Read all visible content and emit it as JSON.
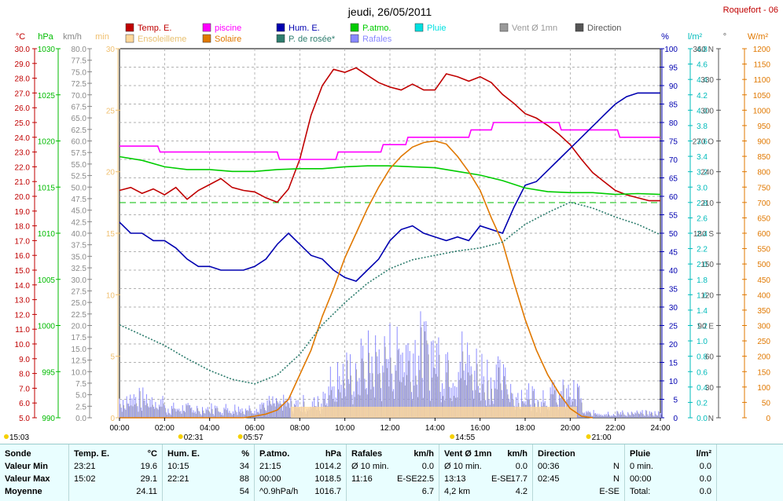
{
  "title": "jeudi, 26/05/2011",
  "station": "Roquefort - 06",
  "legend": [
    {
      "label": "Temp. E.",
      "color": "#c00000"
    },
    {
      "label": "piscine",
      "color": "#ff00ff"
    },
    {
      "label": "Hum. E.",
      "color": "#0000b0"
    },
    {
      "label": "P.atmo.",
      "color": "#00cc00"
    },
    {
      "label": "Pluie",
      "color": "#00e0e0"
    },
    {
      "label": "Vent Ø 1mn",
      "color": "#999999"
    },
    {
      "label": "Direction",
      "color": "#555555"
    },
    {
      "label": "Ensoleilleme",
      "color": "#ffd89a"
    },
    {
      "label": "Solaire",
      "color": "#e07800"
    },
    {
      "label": "P. de rosée*",
      "color": "#2e7d6e"
    },
    {
      "label": "Rafales",
      "color": "#8888ff"
    }
  ],
  "axis_units": {
    "temp": "°C",
    "press": "hPa",
    "wind": "km/h",
    "min": "min",
    "hum": "%",
    "rain": "l/m²",
    "dir": "°",
    "solar": "W/m²"
  },
  "chart_data": {
    "type": "line",
    "x_ticks": [
      "00:00",
      "02:00",
      "04:00",
      "06:00",
      "08:00",
      "10:00",
      "12:00",
      "14:00",
      "16:00",
      "18:00",
      "20:00",
      "22:00",
      "24:00"
    ],
    "axes": {
      "temp": {
        "min": 5.0,
        "max": 30.0,
        "step": 1.0,
        "color": "#c00000"
      },
      "press": {
        "min": 990,
        "max": 1030,
        "step": 5,
        "color": "#00bb00"
      },
      "wind": {
        "min": 0.0,
        "max": 80.0,
        "step": 2.5,
        "color": "#888888"
      },
      "min": {
        "min": 0,
        "max": 30,
        "step": 5,
        "color": "#f0c070"
      },
      "hum": {
        "min": 0,
        "max": 100,
        "step": 5,
        "color": "#0000b0"
      },
      "rain": {
        "min": 0.0,
        "max": 4.8,
        "step": 0.2,
        "color": "#00bbbb"
      },
      "dir": {
        "labels": [
          "N",
          "30",
          "60",
          "90 E",
          "120",
          "150",
          "180 S",
          "210",
          "240",
          "270 O",
          "300",
          "330",
          "360 N"
        ],
        "color": "#555555"
      },
      "solar": {
        "min": 0,
        "max": 1200,
        "step": 50,
        "color": "#e07800"
      }
    },
    "series": [
      {
        "name": "Temp. E.",
        "axis": "temp",
        "color": "#c00000",
        "x": [
          0,
          0.5,
          1,
          1.5,
          2,
          2.5,
          3,
          3.5,
          4,
          4.5,
          5,
          5.5,
          6,
          6.5,
          7,
          7.5,
          8,
          8.5,
          9,
          9.5,
          10,
          10.5,
          11,
          11.5,
          12,
          12.5,
          13,
          13.5,
          14,
          14.5,
          15,
          15.5,
          16,
          16.5,
          17,
          17.5,
          18,
          18.5,
          19,
          19.5,
          20,
          20.5,
          21,
          21.5,
          22,
          22.5,
          23,
          23.5,
          24
        ],
        "y": [
          20.4,
          20.6,
          20.2,
          20.5,
          20.1,
          20.6,
          19.8,
          20.4,
          20.8,
          21.2,
          20.6,
          20.4,
          20.3,
          19.9,
          19.6,
          20.5,
          22.5,
          25.5,
          27.5,
          28.6,
          28.4,
          28.7,
          28.2,
          27.7,
          27.4,
          27.2,
          27.6,
          27.2,
          27.2,
          28.3,
          28.1,
          27.8,
          28.1,
          27.7,
          26.9,
          26.3,
          25.6,
          25.3,
          24.8,
          24.2,
          23.5,
          22.5,
          21.6,
          21,
          20.4,
          20.1,
          19.9,
          19.7,
          19.7
        ]
      },
      {
        "name": "piscine",
        "axis": "temp",
        "color": "#ff00ff",
        "x": [
          0,
          1.7,
          1.8,
          7,
          7.1,
          9.6,
          9.7,
          11.6,
          11.7,
          12.7,
          12.8,
          15.5,
          15.6,
          16.5,
          16.6,
          19.5,
          19.6,
          22.1,
          22.2,
          24
        ],
        "y": [
          23.4,
          23.4,
          23.0,
          23.0,
          22.5,
          22.5,
          23.0,
          23.0,
          23.5,
          23.5,
          24.0,
          24.0,
          24.5,
          24.5,
          25.0,
          25.0,
          24.5,
          24.5,
          24.0,
          24.0
        ]
      },
      {
        "name": "Hum. E.",
        "axis": "hum",
        "color": "#0000b0",
        "x": [
          0,
          0.5,
          1,
          1.5,
          2,
          2.5,
          3,
          3.5,
          4,
          4.5,
          5,
          5.5,
          6,
          6.5,
          7,
          7.5,
          8,
          8.5,
          9,
          9.5,
          10,
          10.5,
          11,
          11.5,
          12,
          12.5,
          13,
          13.5,
          14,
          14.5,
          15,
          15.5,
          16,
          16.5,
          17,
          17.5,
          18,
          18.5,
          19,
          19.5,
          20,
          20.5,
          21,
          21.5,
          22,
          22.5,
          23,
          23.5,
          24
        ],
        "y": [
          53,
          50,
          50,
          48,
          48,
          46,
          43,
          41,
          41,
          40,
          40,
          40,
          41,
          43,
          47,
          50,
          47,
          44,
          43,
          40,
          38,
          37,
          40,
          43,
          48,
          51,
          52,
          50,
          49,
          48,
          49,
          48,
          52,
          51,
          50,
          57,
          63,
          64,
          67,
          70,
          73,
          76,
          79,
          82,
          85,
          87,
          88,
          88,
          88
        ]
      },
      {
        "name": "P.atmo.",
        "axis": "press",
        "color": "#00cc00",
        "x": [
          0,
          1,
          2,
          3,
          4,
          5,
          6,
          7,
          8,
          9,
          10,
          11,
          12,
          13,
          14,
          15,
          16,
          17,
          18,
          19,
          20,
          21,
          22,
          23,
          24
        ],
        "y": [
          1018.3,
          1017.9,
          1017.2,
          1016.9,
          1016.9,
          1016.7,
          1016.7,
          1016.9,
          1017.0,
          1017.0,
          1017.2,
          1017.3,
          1017.3,
          1017.2,
          1017.1,
          1016.7,
          1016.3,
          1015.7,
          1014.9,
          1014.5,
          1014.4,
          1014.4,
          1014.2,
          1014.3,
          1014.2
        ]
      },
      {
        "name": "Solaire",
        "axis": "solar",
        "color": "#e07800",
        "x": [
          0,
          5.5,
          6,
          6.5,
          7,
          7.5,
          8,
          8.5,
          9,
          9.5,
          10,
          10.5,
          11,
          11.5,
          12,
          12.5,
          13,
          13.5,
          14,
          14.5,
          15,
          15.5,
          16,
          16.5,
          17,
          17.5,
          18,
          18.5,
          19,
          19.5,
          20,
          20.5,
          21
        ],
        "y": [
          0,
          0,
          5,
          12,
          25,
          60,
          140,
          220,
          330,
          420,
          520,
          600,
          680,
          750,
          810,
          850,
          880,
          895,
          900,
          890,
          850,
          800,
          740,
          650,
          570,
          440,
          320,
          220,
          140,
          80,
          30,
          5,
          0
        ]
      },
      {
        "name": "P. de rosée*",
        "axis": "temp",
        "color": "#2e7d6e",
        "x": [
          0,
          1,
          2,
          3,
          4,
          5,
          6,
          7,
          8,
          9,
          10,
          11,
          12,
          13,
          14,
          15,
          16,
          17,
          18,
          19,
          20,
          21,
          22,
          23,
          24
        ],
        "y": [
          11.3,
          10.6,
          9.9,
          9.0,
          8.2,
          7.6,
          7.3,
          7.9,
          9.3,
          11.3,
          12.8,
          14.1,
          15.1,
          15.7,
          16.0,
          16.3,
          16.5,
          16.9,
          18.1,
          18.9,
          19.6,
          19.2,
          18.6,
          18.1,
          17.4
        ]
      }
    ]
  },
  "bottom_times": [
    {
      "text": "15:03",
      "x": 0.4
    },
    {
      "text": "02:31",
      "x": 2.85
    },
    {
      "text": "05:57",
      "x": 5.5
    },
    {
      "text": "14:55",
      "x": 14.9
    },
    {
      "text": "21:00",
      "x": 20.95
    }
  ],
  "stats": {
    "col1": {
      "header": "Sonde",
      "rows": [
        "Valeur Min",
        "Valeur Max",
        "Moyenne"
      ]
    },
    "col2": {
      "header": "Temp. E.",
      "unit": "°C",
      "rows": [
        [
          "23:21",
          "19.6"
        ],
        [
          "15:02",
          "29.1"
        ],
        [
          "",
          "24.11"
        ]
      ]
    },
    "col3": {
      "header": "Hum. E.",
      "unit": "%",
      "rows": [
        [
          "10:15",
          "34"
        ],
        [
          "22:21",
          "88"
        ],
        [
          "",
          "54"
        ]
      ]
    },
    "col4": {
      "header": "P.atmo.",
      "unit": "hPa",
      "rows": [
        [
          "21:15",
          "1014.2"
        ],
        [
          "00:00",
          "1018.5"
        ],
        [
          "^0.9hPa/h",
          "1016.7"
        ]
      ]
    },
    "col5": {
      "header": "Rafales",
      "unit": "km/h",
      "rows": [
        [
          "Ø 10 min.",
          "",
          "0.0"
        ],
        [
          "11:16",
          "E-SE",
          "22.5"
        ],
        [
          "",
          "",
          "6.7"
        ]
      ]
    },
    "col6": {
      "header": "Vent Ø 1mn",
      "unit": "km/h",
      "rows": [
        [
          "Ø 10 min.",
          "",
          "0.0"
        ],
        [
          "13:13",
          "E-SE",
          "17.7"
        ],
        [
          "4,2 km",
          "",
          "4.2"
        ]
      ]
    },
    "col7": {
      "header": "Direction",
      "rows": [
        [
          "00:36",
          "N"
        ],
        [
          "02:45",
          "N"
        ],
        [
          "",
          "E-SE"
        ]
      ]
    },
    "col8": {
      "header": "Pluie",
      "unit": "l/m²",
      "rows": [
        [
          "0 min.",
          "0.0"
        ],
        [
          "00:00",
          "0.0"
        ],
        [
          "Total:",
          "0.0"
        ]
      ]
    }
  }
}
